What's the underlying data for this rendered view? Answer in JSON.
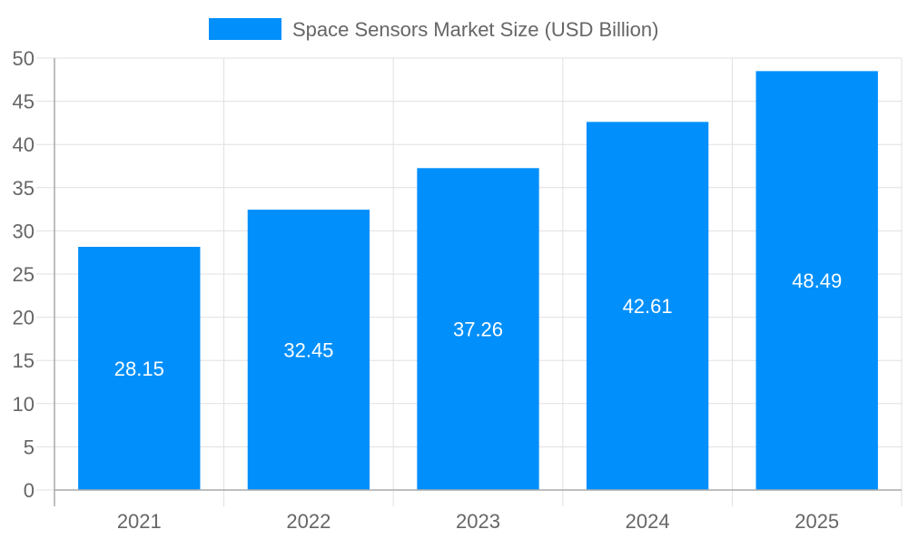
{
  "chart_data": {
    "type": "bar",
    "title": "",
    "xlabel": "",
    "ylabel": "",
    "categories": [
      "2021",
      "2022",
      "2023",
      "2024",
      "2025"
    ],
    "series": [
      {
        "name": "Space Sensors Market Size (USD Billion)",
        "values": [
          28.15,
          32.45,
          37.26,
          42.61,
          48.49
        ],
        "color": "#008ffb"
      }
    ],
    "data_labels": [
      "28.15",
      "32.45",
      "37.26",
      "42.61",
      "48.49"
    ],
    "ylim": [
      0,
      50
    ],
    "yticks": [
      "0",
      "5",
      "10",
      "15",
      "20",
      "25",
      "30",
      "35",
      "40",
      "45",
      "50"
    ],
    "grid": true,
    "legend": "top-center"
  }
}
